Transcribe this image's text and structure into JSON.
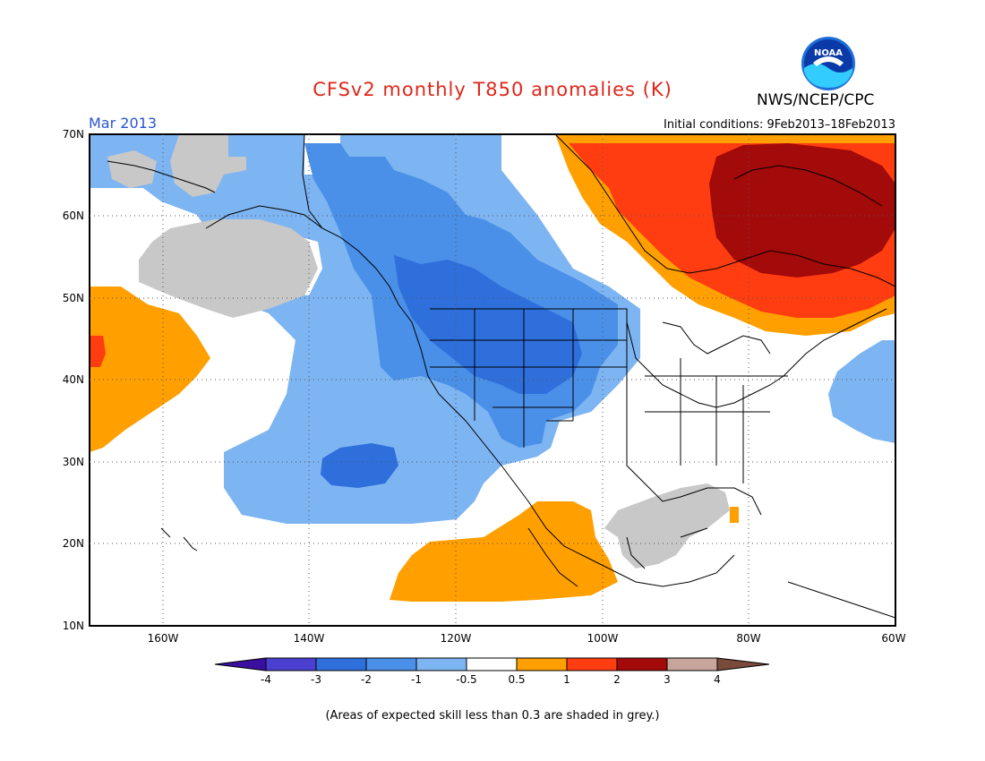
{
  "header": {
    "title": "CFSv2 monthly T850 anomalies (K)",
    "agency": "NWS/NCEP/CPC",
    "logo_text": "NOAA",
    "month": "Mar 2013",
    "initial_conditions": "Initial conditions: 9Feb2013–18Feb2013"
  },
  "map": {
    "lat_labels": [
      "70N",
      "60N",
      "50N",
      "40N",
      "30N",
      "20N",
      "10N"
    ],
    "lon_labels": [
      "160W",
      "140W",
      "120W",
      "100W",
      "80W",
      "60W"
    ]
  },
  "colorbar": {
    "labels": [
      "-4",
      "-3",
      "-2",
      "-1",
      "-0.5",
      "0.5",
      "1",
      "2",
      "3",
      "4"
    ],
    "colors": [
      "#3a0fa0",
      "#4a3fd0",
      "#2f6fdc",
      "#4a90e8",
      "#7db4f2",
      "#ffffff",
      "#ff9f00",
      "#ff3d10",
      "#a30a0a",
      "#c8a59a",
      "#7a4a3a"
    ]
  },
  "footnote": "(Areas of expected skill less than 0.3 are shaded in grey.)",
  "palette": {
    "grey": "#c8c8c8",
    "light_blue": "#7db4f2",
    "mid_blue": "#4a90e8",
    "dark_blue": "#2f6fdc",
    "orange": "#ff9f00",
    "red": "#ff3d10",
    "dark_red": "#a30a0a"
  }
}
